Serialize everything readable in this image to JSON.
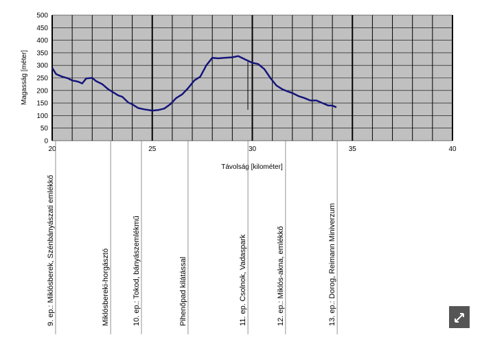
{
  "chart_data": {
    "type": "line",
    "xlabel": "Távolság [kilométer]",
    "ylabel": "Magasság [méter]",
    "xlim": [
      20,
      40
    ],
    "ylim": [
      0,
      500
    ],
    "xticks": [
      20,
      25,
      30,
      35,
      40
    ],
    "xgrid": [
      20,
      21,
      22,
      23,
      24,
      25,
      26,
      27,
      28,
      29,
      30,
      31,
      32,
      33,
      34,
      35,
      36,
      37,
      38,
      39,
      40
    ],
    "yticks": [
      0,
      50,
      100,
      150,
      200,
      250,
      300,
      350,
      400,
      450,
      500
    ],
    "grid": true,
    "background": "#c0c0c0",
    "series": [
      {
        "color": "#14147a",
        "x": [
          20.0,
          20.2,
          20.5,
          20.8,
          21.0,
          21.3,
          21.5,
          21.7,
          22.0,
          22.2,
          22.5,
          22.8,
          23.0,
          23.3,
          23.5,
          23.8,
          24.0,
          24.3,
          24.6,
          25.0,
          25.3,
          25.6,
          25.9,
          26.2,
          26.5,
          26.8,
          27.1,
          27.4,
          27.7,
          28.0,
          28.3,
          28.6,
          29.0,
          29.3,
          29.6,
          30.0,
          30.3,
          30.6,
          30.9,
          31.2,
          31.5,
          31.8,
          32.0,
          32.3,
          32.6,
          32.9,
          33.2,
          33.5,
          33.8,
          34.0,
          34.2
        ],
        "values": [
          290,
          265,
          255,
          248,
          240,
          235,
          228,
          248,
          250,
          237,
          225,
          205,
          195,
          180,
          175,
          152,
          145,
          130,
          125,
          120,
          122,
          128,
          145,
          170,
          185,
          210,
          240,
          255,
          300,
          330,
          328,
          330,
          332,
          337,
          325,
          310,
          305,
          285,
          250,
          220,
          205,
          195,
          190,
          178,
          170,
          160,
          160,
          150,
          140,
          140,
          133
        ]
      }
    ],
    "waypoints": [
      {
        "label": "9. ep.: Miklósberek, Szénbányászati emlékkő",
        "km": 20.17
      },
      {
        "label": "Miklósbereki-horgásztó",
        "km": 22.92
      },
      {
        "label": "10. ep.: Tokod, bányászemlékmű",
        "km": 24.46
      },
      {
        "label": "Pihenőpad kilátással",
        "km": 26.79
      },
      {
        "label": "11. ep. Csolnok, Vadaspark",
        "km": 29.78
      },
      {
        "label": "12. ep.: Miklós-akna, emlékkő",
        "km": 31.66
      },
      {
        "label": "13. ep.: Dorog, Reimann Miniverzum",
        "km": 34.24
      }
    ]
  }
}
